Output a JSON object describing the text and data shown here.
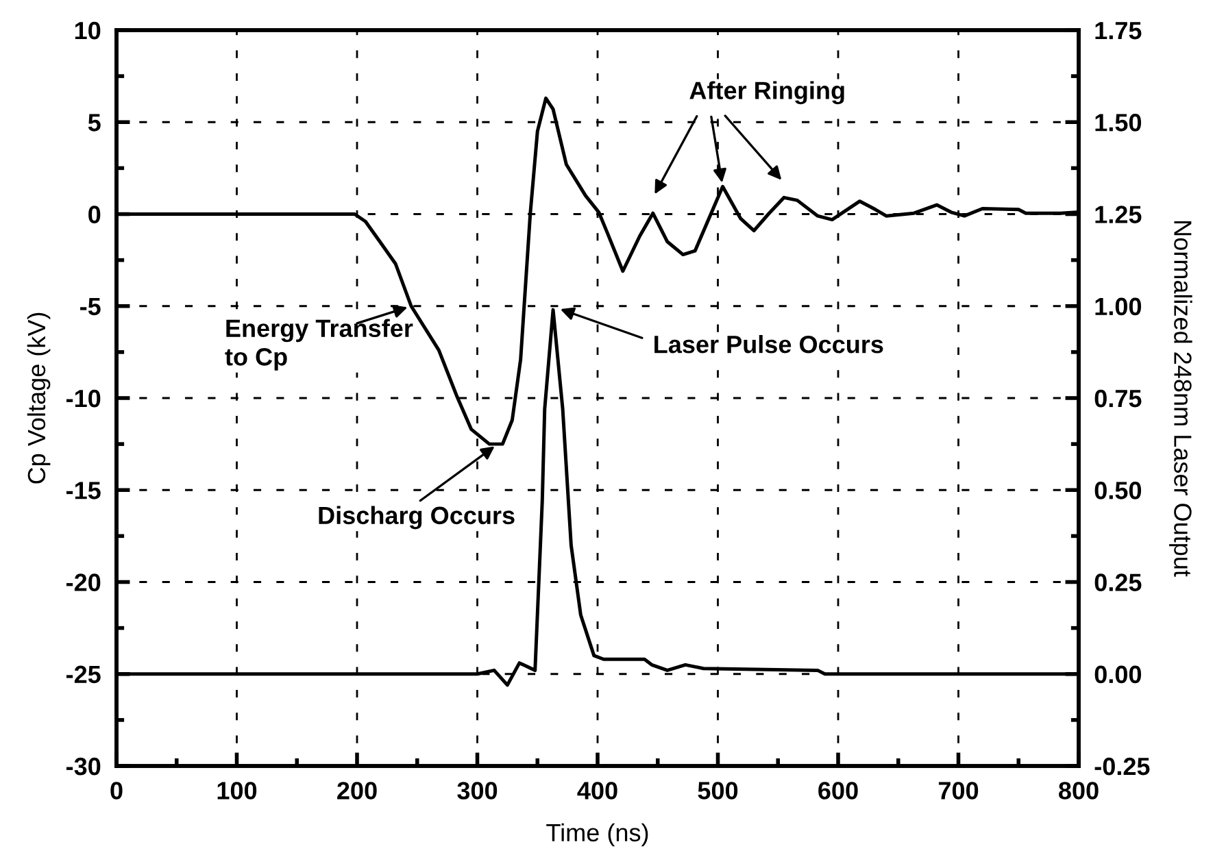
{
  "chart_data": {
    "type": "line",
    "xlabel": "Time (ns)",
    "ylabel": "Cp Voltage (kV)",
    "y2label": "Normalized 248nm Laser Output",
    "xlim": [
      0,
      800
    ],
    "xticks": [
      0,
      100,
      200,
      300,
      400,
      500,
      600,
      700,
      800
    ],
    "ylim": [
      -30,
      10
    ],
    "yticks": [
      -30,
      -25,
      -20,
      -15,
      -10,
      -5,
      0,
      5,
      10
    ],
    "y2lim": [
      -0.25,
      1.75
    ],
    "y2ticks": [
      {
        "value": -0.25,
        "label": "-0.25"
      },
      {
        "value": 0,
        "label": "0.00"
      },
      {
        "value": 0.25,
        "label": "0.25"
      },
      {
        "value": 0.5,
        "label": "0.50"
      },
      {
        "value": 0.75,
        "label": "0.75"
      },
      {
        "value": 1,
        "label": "1.00"
      },
      {
        "value": 1.25,
        "label": "1.25"
      },
      {
        "value": 1.5,
        "label": "1.50"
      },
      {
        "value": 1.75,
        "label": "1.75"
      }
    ],
    "grid": true,
    "legend": false,
    "marker": "none",
    "line_style": "solid",
    "series": [
      {
        "color": "#000000",
        "x": [
          0,
          50,
          100,
          150,
          198,
          207,
          219,
          232,
          245,
          268,
          283,
          295,
          310,
          321,
          329,
          336,
          344,
          350,
          357,
          363,
          374,
          390,
          401,
          408,
          421,
          435,
          446,
          458,
          471,
          481,
          504,
          519,
          530,
          542,
          555,
          566,
          583,
          595,
          618,
          631,
          640,
          663,
          682,
          694,
          705,
          720,
          750,
          756,
          785,
          797
        ],
        "values": [
          0,
          0,
          0,
          0,
          0,
          -0.4,
          -1.5,
          -2.7,
          -5.0,
          -7.4,
          -9.9,
          -11.7,
          -12.5,
          -12.5,
          -11.2,
          -7.9,
          0,
          4.5,
          6.3,
          5.7,
          2.7,
          1.0,
          0.1,
          -1.0,
          -3.1,
          -1.2,
          0.05,
          -1.5,
          -2.2,
          -2.0,
          1.5,
          -0.25,
          -0.9,
          0,
          0.9,
          0.75,
          -0.1,
          -0.3,
          0.7,
          0.25,
          -0.1,
          0.05,
          0.5,
          0.1,
          -0.1,
          0.3,
          0.25,
          0.05,
          0.05,
          0.1
        ]
      },
      {
        "color": "#000000",
        "axis": "y2",
        "x": [
          0,
          100,
          200,
          300,
          314,
          325,
          335,
          348,
          354,
          356,
          363,
          371,
          378,
          386,
          397,
          405,
          439,
          445,
          458,
          473,
          488,
          583,
          589,
          700,
          797
        ],
        "values": [
          0,
          0,
          0,
          0,
          0.01,
          -0.03,
          0.03,
          0.01,
          0.47,
          0.72,
          0.99,
          0.72,
          0.35,
          0.16,
          0.05,
          0.04,
          0.04,
          0.025,
          0.01,
          0.025,
          0.015,
          0.01,
          0,
          0,
          0
        ]
      }
    ],
    "annotations": [
      {
        "text": "Energy Transfer\nto Cp",
        "x": 245,
        "y": -5
      },
      {
        "text": "Discharg Occurs",
        "x": 317,
        "y": -12.5
      },
      {
        "text": "Laser Pulse Occurs",
        "x": 366,
        "y": -5.1
      },
      {
        "text": "After Ringing",
        "x": 504,
        "y": 1.5
      }
    ]
  }
}
